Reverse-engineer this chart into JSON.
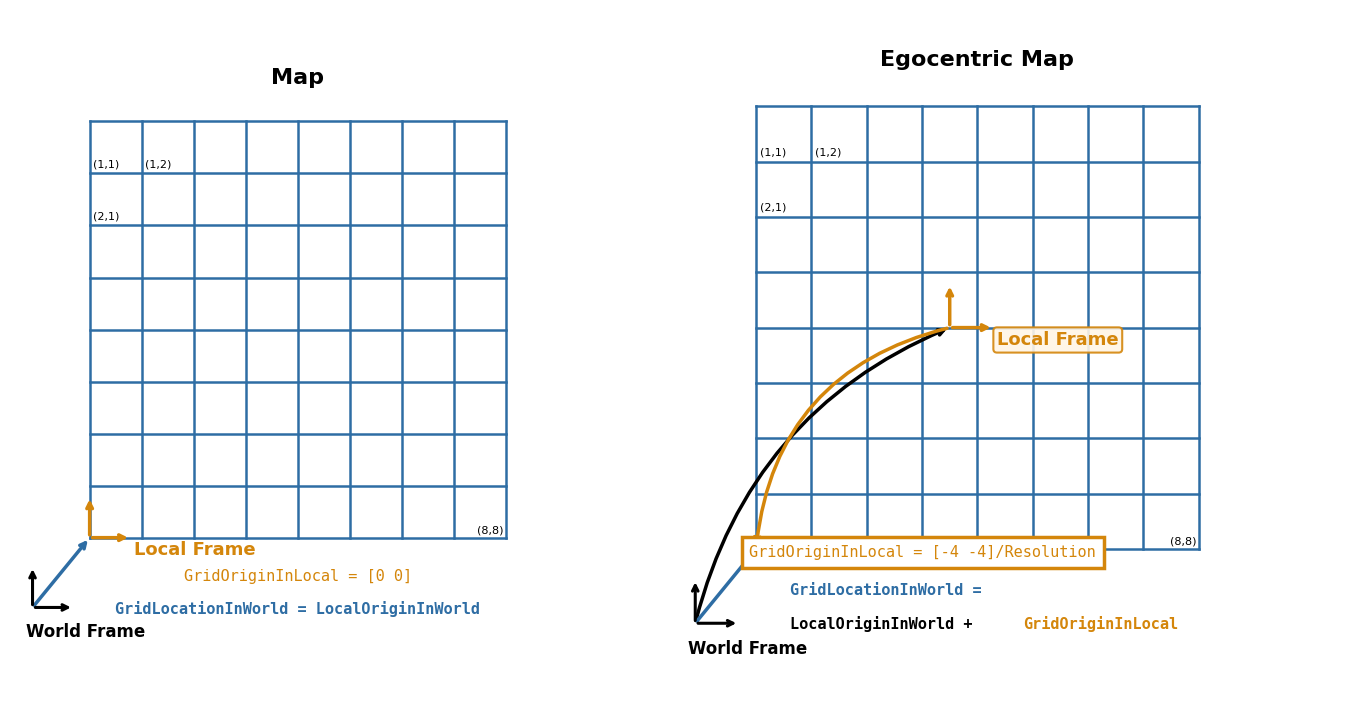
{
  "title_left": "Map",
  "title_right": "Egocentric Map",
  "grid_color": "#2E6DA4",
  "grid_linewidth": 1.8,
  "grid_rows": 8,
  "grid_cols": 8,
  "orange_color": "#D4860B",
  "blue_color": "#2E6DA4",
  "black_color": "#000000",
  "bg_color": "#FFFFFF",
  "world_frame_label": "World Frame",
  "local_frame_label": "Local Frame",
  "text_left_orange": "GridOriginInLocal = [0 0]",
  "text_left_blue": "GridLocationInWorld = LocalOriginInWorld",
  "text_right_orange_box": "GridOriginInLocal = [-4 -4]/Resolution",
  "text_right_line1_blue": "GridLocationInWorld =",
  "text_right_line2_black": "LocalOriginInWorld + ",
  "text_right_line2_orange": "GridOriginInLocal"
}
